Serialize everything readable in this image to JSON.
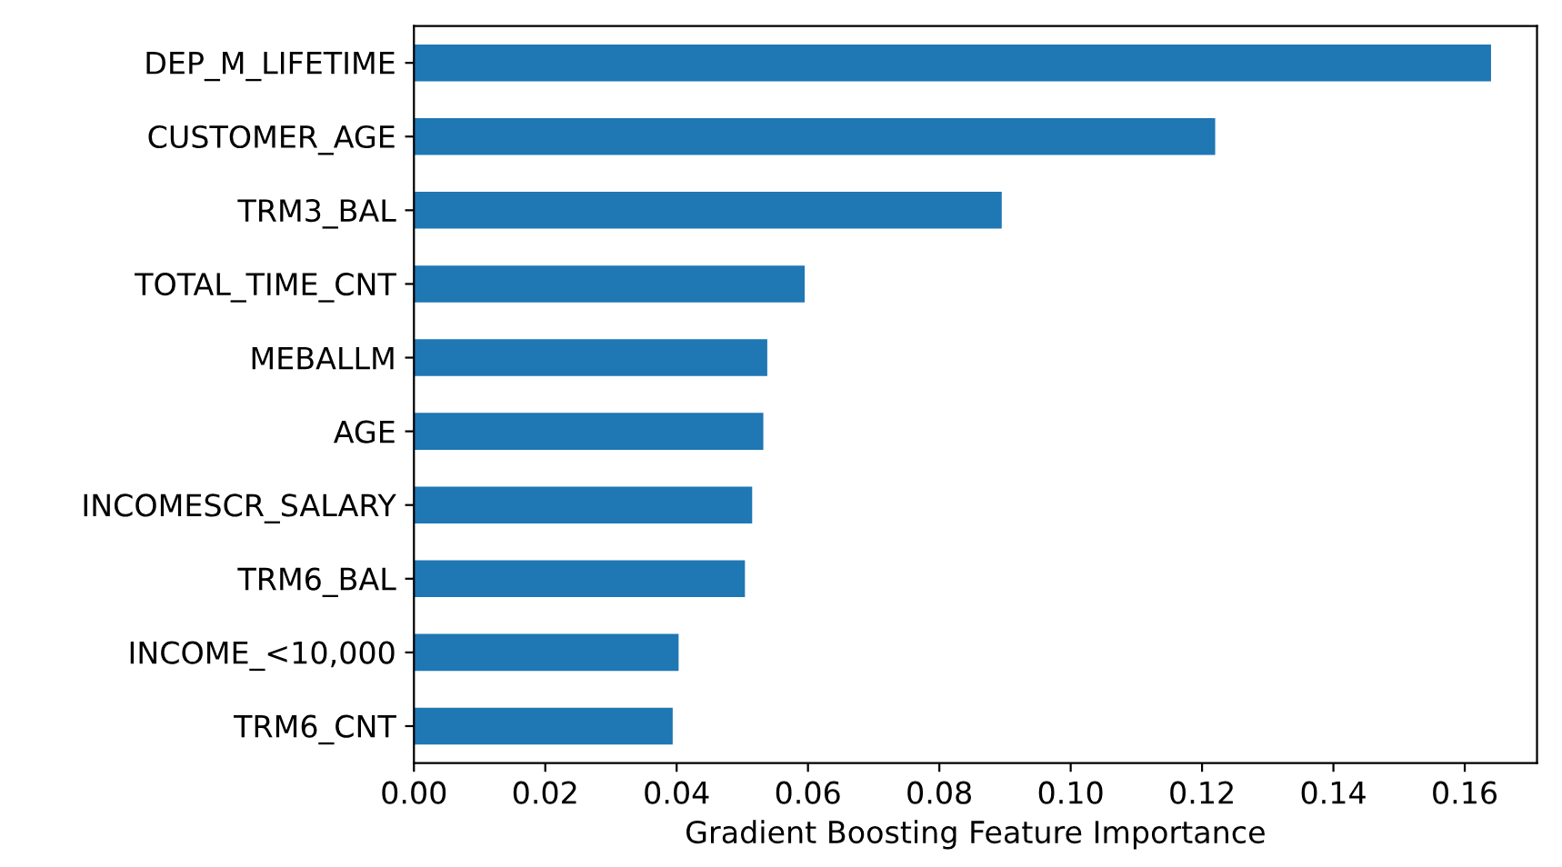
{
  "chart_data": {
    "type": "bar",
    "orientation": "horizontal",
    "xlabel": "Gradient Boosting Feature Importance",
    "categories": [
      "DEP_M_LIFETIME",
      "CUSTOMER_AGE",
      "TRM3_BAL",
      "TOTAL_TIME_CNT",
      "MEBALLM",
      "AGE",
      "INCOMESCR_SALARY",
      "TRM6_BAL",
      "INCOME_<10,000",
      "TRM6_CNT"
    ],
    "values": [
      0.164,
      0.122,
      0.0895,
      0.0595,
      0.0538,
      0.0532,
      0.0515,
      0.0504,
      0.0403,
      0.0394
    ],
    "color": "#1f77b4",
    "xlim": [
      0,
      0.171
    ],
    "xticks": [
      {
        "value": 0,
        "label": "0.00"
      },
      {
        "value": 0.02,
        "label": "0.02"
      },
      {
        "value": 0.04,
        "label": "0.04"
      },
      {
        "value": 0.06,
        "label": "0.06"
      },
      {
        "value": 0.08,
        "label": "0.08"
      },
      {
        "value": 0.1,
        "label": "0.10"
      },
      {
        "value": 0.12,
        "label": "0.12"
      },
      {
        "value": 0.14,
        "label": "0.14"
      },
      {
        "value": 0.16,
        "label": "0.16"
      }
    ],
    "grid": false,
    "legend": false
  }
}
